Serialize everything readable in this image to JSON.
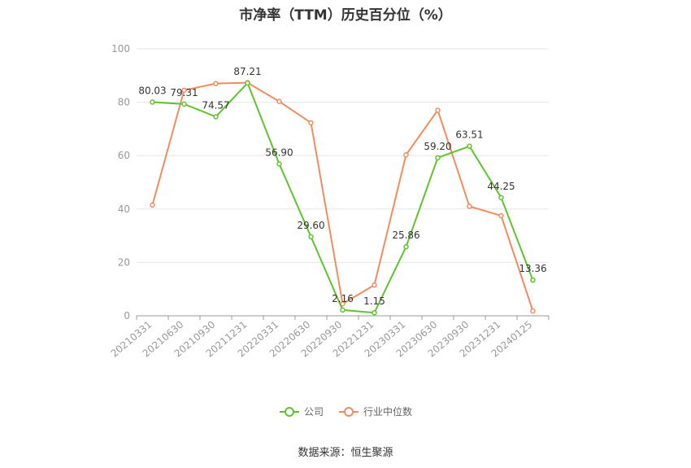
{
  "title": "市净率（TTM）历史百分位（%）",
  "source": "数据来源：恒生聚源",
  "colors": {
    "company": "#5ec42d",
    "industry": "#f28c5e",
    "grid": "#e6e6e6",
    "axis": "#999999"
  },
  "chart_data": {
    "type": "line",
    "categories": [
      "20210331",
      "20210630",
      "20210930",
      "20211231",
      "20220331",
      "20220630",
      "20220930",
      "20221231",
      "20230331",
      "20230630",
      "20230930",
      "20231231",
      "20240125"
    ],
    "ylim": [
      0,
      100
    ],
    "yticks": [
      0,
      20,
      40,
      60,
      80,
      100
    ],
    "grid": true,
    "legend_position": "bottom",
    "series": [
      {
        "name": "公司",
        "values": [
          80.03,
          79.31,
          74.57,
          87.21,
          56.9,
          29.6,
          2.16,
          1.15,
          25.86,
          59.2,
          63.51,
          44.25,
          13.36
        ],
        "labels": [
          "80.03",
          "79.31",
          "74.57",
          "87.21",
          "56.90",
          "29.60",
          "2.16",
          "1.15",
          "25.86",
          "59.20",
          "63.51",
          "44.25",
          "13.36"
        ]
      },
      {
        "name": "行业中位数",
        "values": [
          41.5,
          84.5,
          87.0,
          87.3,
          80.3,
          72.3,
          4.5,
          11.5,
          60.3,
          77.0,
          41.0,
          37.5,
          1.8
        ]
      }
    ]
  }
}
